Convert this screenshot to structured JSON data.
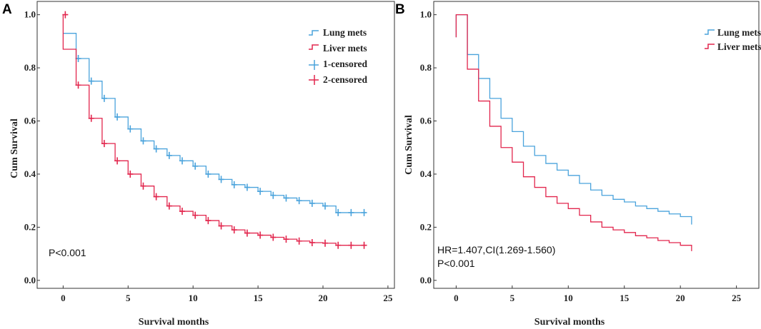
{
  "colors": {
    "lung": "#4aa3dc",
    "liver": "#e2264d",
    "axis": "#333333"
  },
  "chart_data": [
    {
      "panel": "A",
      "type": "line",
      "subtype": "kaplan-meier",
      "xlabel": "Survival months",
      "ylabel": "Cum Survival",
      "xlim": [
        -2,
        25.5
      ],
      "ylim": [
        -0.03,
        1.05
      ],
      "xticks": [
        "0",
        "5",
        "10",
        "15",
        "20",
        "25"
      ],
      "yticks": [
        "0.0",
        "0.2",
        "0.4",
        "0.6",
        "0.8",
        "1.0"
      ],
      "xtick_values": [
        0,
        5,
        10,
        15,
        20,
        25
      ],
      "ytick_values": [
        0.0,
        0.2,
        0.4,
        0.6,
        0.8,
        1.0
      ],
      "legend": [
        "Lung mets",
        "Liver mets",
        "1-censored",
        "2-censored"
      ],
      "annotations": [
        "P<0.001"
      ],
      "series": [
        {
          "name": "Lung mets",
          "color": "#4aa3dc",
          "start": [
            0,
            0.93
          ],
          "steps": [
            [
              1,
              0.835
            ],
            [
              2,
              0.75
            ],
            [
              3,
              0.685
            ],
            [
              4,
              0.615
            ],
            [
              5,
              0.57
            ],
            [
              6,
              0.525
            ],
            [
              7,
              0.495
            ],
            [
              8,
              0.47
            ],
            [
              9,
              0.45
            ],
            [
              10,
              0.43
            ],
            [
              11,
              0.4
            ],
            [
              12,
              0.38
            ],
            [
              13,
              0.36
            ],
            [
              14,
              0.35
            ],
            [
              15,
              0.335
            ],
            [
              16,
              0.32
            ],
            [
              17,
              0.31
            ],
            [
              18,
              0.3
            ],
            [
              19,
              0.29
            ],
            [
              20,
              0.28
            ],
            [
              21,
              0.255
            ],
            [
              22,
              0.255
            ],
            [
              23,
              0.255
            ]
          ],
          "censored": [
            [
              1,
              0.835
            ],
            [
              2,
              0.75
            ],
            [
              3,
              0.685
            ],
            [
              4,
              0.615
            ],
            [
              5,
              0.57
            ],
            [
              6,
              0.525
            ],
            [
              7,
              0.495
            ],
            [
              8,
              0.47
            ],
            [
              9,
              0.45
            ],
            [
              10,
              0.43
            ],
            [
              11,
              0.4
            ],
            [
              12,
              0.38
            ],
            [
              13,
              0.36
            ],
            [
              14,
              0.35
            ],
            [
              15,
              0.335
            ],
            [
              16,
              0.32
            ],
            [
              17,
              0.31
            ],
            [
              18,
              0.3
            ],
            [
              19,
              0.29
            ],
            [
              20,
              0.28
            ],
            [
              21,
              0.255
            ],
            [
              22,
              0.255
            ],
            [
              23,
              0.255
            ]
          ]
        },
        {
          "name": "Liver mets",
          "color": "#e2264d",
          "start": [
            0,
            1.0
          ],
          "steps": [
            [
              0,
              0.87
            ],
            [
              1,
              0.735
            ],
            [
              2,
              0.61
            ],
            [
              3,
              0.515
            ],
            [
              4,
              0.45
            ],
            [
              5,
              0.4
            ],
            [
              6,
              0.355
            ],
            [
              7,
              0.315
            ],
            [
              8,
              0.28
            ],
            [
              9,
              0.26
            ],
            [
              10,
              0.245
            ],
            [
              11,
              0.225
            ],
            [
              12,
              0.205
            ],
            [
              13,
              0.19
            ],
            [
              14,
              0.178
            ],
            [
              15,
              0.17
            ],
            [
              16,
              0.162
            ],
            [
              17,
              0.155
            ],
            [
              18,
              0.148
            ],
            [
              19,
              0.142
            ],
            [
              20,
              0.14
            ],
            [
              21,
              0.132
            ],
            [
              22,
              0.132
            ],
            [
              23,
              0.132
            ]
          ],
          "censored": [
            [
              0,
              1.0
            ],
            [
              1,
              0.735
            ],
            [
              2,
              0.61
            ],
            [
              3,
              0.515
            ],
            [
              4,
              0.45
            ],
            [
              5,
              0.4
            ],
            [
              6,
              0.355
            ],
            [
              7,
              0.315
            ],
            [
              8,
              0.28
            ],
            [
              9,
              0.26
            ],
            [
              10,
              0.245
            ],
            [
              11,
              0.225
            ],
            [
              12,
              0.205
            ],
            [
              13,
              0.19
            ],
            [
              14,
              0.178
            ],
            [
              15,
              0.17
            ],
            [
              16,
              0.162
            ],
            [
              17,
              0.155
            ],
            [
              18,
              0.148
            ],
            [
              19,
              0.142
            ],
            [
              20,
              0.14
            ],
            [
              21,
              0.132
            ],
            [
              22,
              0.132
            ],
            [
              23,
              0.132
            ]
          ]
        }
      ]
    },
    {
      "panel": "B",
      "type": "line",
      "subtype": "survival-step",
      "xlabel": "Survival months",
      "ylabel": "Cum Survival",
      "xlim": [
        -2,
        27
      ],
      "ylim": [
        -0.03,
        1.05
      ],
      "xticks": [
        "0",
        "5",
        "10",
        "15",
        "20",
        "25"
      ],
      "yticks": [
        "0.0",
        "0.2",
        "0.4",
        "0.6",
        "0.8",
        "1.0"
      ],
      "xtick_values": [
        0,
        5,
        10,
        15,
        20,
        25
      ],
      "ytick_values": [
        0.0,
        0.2,
        0.4,
        0.6,
        0.8,
        1.0
      ],
      "legend": [
        "Lung mets",
        "Liver mets"
      ],
      "annotations": [
        "HR=1.407,CI(1.269-1.560)",
        "P<0.001"
      ],
      "series": [
        {
          "name": "Lung mets",
          "color": "#4aa3dc",
          "start": [
            0,
            0.915
          ],
          "steps": [
            [
              0,
              1.0
            ],
            [
              1,
              0.85
            ],
            [
              2,
              0.76
            ],
            [
              3,
              0.685
            ],
            [
              4,
              0.61
            ],
            [
              5,
              0.56
            ],
            [
              6,
              0.505
            ],
            [
              7,
              0.47
            ],
            [
              8,
              0.44
            ],
            [
              9,
              0.415
            ],
            [
              10,
              0.395
            ],
            [
              11,
              0.365
            ],
            [
              12,
              0.34
            ],
            [
              13,
              0.32
            ],
            [
              14,
              0.305
            ],
            [
              15,
              0.295
            ],
            [
              16,
              0.28
            ],
            [
              17,
              0.27
            ],
            [
              18,
              0.26
            ],
            [
              19,
              0.25
            ],
            [
              20,
              0.24
            ],
            [
              21,
              0.225
            ]
          ],
          "end": [
            21,
            0.21
          ],
          "censored": []
        },
        {
          "name": "Liver mets",
          "color": "#e2264d",
          "start": [
            0,
            0.915
          ],
          "steps": [
            [
              0,
              1.0
            ],
            [
              1,
              0.795
            ],
            [
              2,
              0.675
            ],
            [
              3,
              0.58
            ],
            [
              4,
              0.5
            ],
            [
              5,
              0.445
            ],
            [
              6,
              0.39
            ],
            [
              7,
              0.35
            ],
            [
              8,
              0.315
            ],
            [
              9,
              0.29
            ],
            [
              10,
              0.27
            ],
            [
              11,
              0.245
            ],
            [
              12,
              0.22
            ],
            [
              13,
              0.2
            ],
            [
              14,
              0.19
            ],
            [
              15,
              0.18
            ],
            [
              16,
              0.168
            ],
            [
              17,
              0.16
            ],
            [
              18,
              0.15
            ],
            [
              19,
              0.142
            ],
            [
              20,
              0.132
            ],
            [
              21,
              0.125
            ]
          ],
          "end": [
            21,
            0.11
          ],
          "censored": []
        }
      ]
    }
  ]
}
